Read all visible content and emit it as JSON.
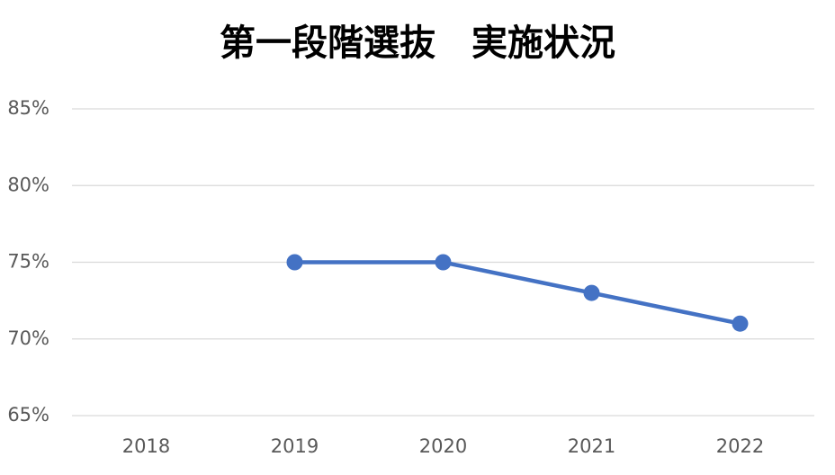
{
  "chart_data": {
    "type": "line",
    "title": "第一段階選抜　実施状況",
    "categories": [
      "2018",
      "2019",
      "2020",
      "2021",
      "2022"
    ],
    "series": [
      {
        "color": "#4472c4",
        "values": [
          null,
          75,
          75,
          73,
          71
        ]
      }
    ],
    "ylim": [
      65,
      85
    ],
    "yticks": [
      {
        "value": 65,
        "label": "65%"
      },
      {
        "value": 70,
        "label": "70%"
      },
      {
        "value": 75,
        "label": "75%"
      },
      {
        "value": 80,
        "label": "80%"
      },
      {
        "value": 85,
        "label": "85%"
      }
    ],
    "grid": true
  }
}
